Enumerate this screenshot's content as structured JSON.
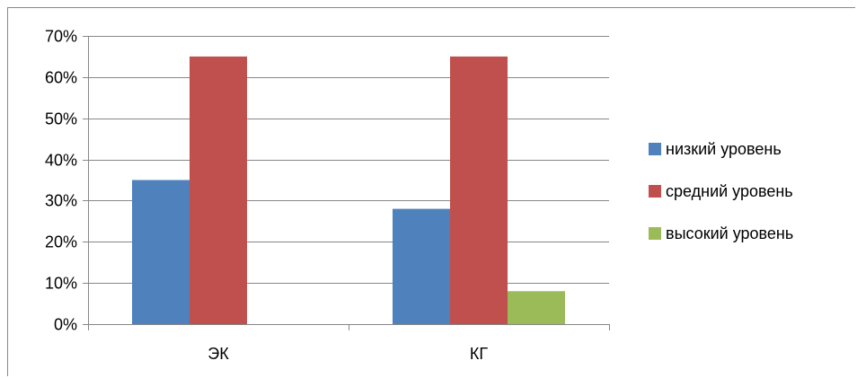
{
  "chart_data": {
    "type": "bar",
    "title": "",
    "xlabel": "",
    "ylabel": "",
    "categories": [
      "ЭК",
      "КГ"
    ],
    "series": [
      {
        "name": "низкий уровень",
        "values": [
          0.35,
          0.28
        ],
        "color": "#4f81bd"
      },
      {
        "name": "средний уровень",
        "values": [
          0.65,
          0.65
        ],
        "color": "#c0504d"
      },
      {
        "name": "высокий уровень",
        "values": [
          0.0,
          0.08
        ],
        "color": "#9bbb59"
      }
    ],
    "ylim": [
      0,
      0.7
    ],
    "yticks": [
      0,
      0.1,
      0.2,
      0.3,
      0.4,
      0.5,
      0.6,
      0.7
    ],
    "ytick_labels": [
      "0%",
      "10%",
      "20%",
      "30%",
      "40%",
      "50%",
      "60%",
      "70%"
    ],
    "grid": true,
    "legend_position": "right"
  }
}
